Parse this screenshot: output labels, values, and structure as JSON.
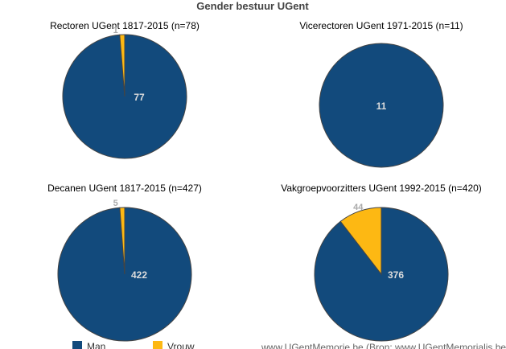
{
  "title": "Gender bestuur UGent",
  "colors": {
    "Man": "#124a7c",
    "Vrouw": "#fdb813",
    "stroke": "#444444"
  },
  "legend": [
    {
      "name": "Man",
      "color": "#124a7c"
    },
    {
      "name": "Vrouw",
      "color": "#fdb813"
    }
  ],
  "source": "www.UGentMemorie.be (Bron: www.UGentMemorialis.be)",
  "chart_data": [
    {
      "type": "pie",
      "title": "Rectoren UGent 1817-2015 (n=78)",
      "slices": [
        {
          "name": "Man",
          "value": 77
        },
        {
          "name": "Vrouw",
          "value": 1
        }
      ]
    },
    {
      "type": "pie",
      "title": "Vicerectoren UGent 1971-2015 (n=11)",
      "slices": [
        {
          "name": "Man",
          "value": 11
        }
      ]
    },
    {
      "type": "pie",
      "title": "Decanen UGent 1817-2015 (n=427)",
      "slices": [
        {
          "name": "Man",
          "value": 422
        },
        {
          "name": "Vrouw",
          "value": 5
        }
      ]
    },
    {
      "type": "pie",
      "title": "Vakgroepvoorzitters UGent 1992-2015 (n=420)",
      "slices": [
        {
          "name": "Man",
          "value": 376
        },
        {
          "name": "Vrouw",
          "value": 44
        }
      ]
    }
  ]
}
